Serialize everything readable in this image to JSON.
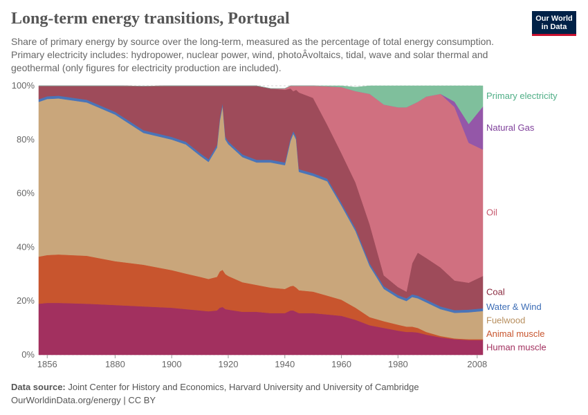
{
  "header": {
    "title": "Long-term energy transitions, Portugal",
    "subtitle": "Share of primary energy by source over the long-term, measured as the percentage of total energy consumption. Primary electricity includes: hydropower, nuclear power, wind, photoÂvoltaics, tidal, wave and solar thermal and geothermal (only figures for electricity production are included)."
  },
  "logo": {
    "line1": "Our World",
    "line2": "in Data",
    "bg_color": "#002147",
    "accent_color": "#c8102e"
  },
  "footer": {
    "source_label": "Data source:",
    "source_text": " Joint Center for History and Economics, Harvard University and University of Cambridge",
    "link_text": "OurWorldinData.org/energy | CC BY"
  },
  "chart_data": {
    "type": "area",
    "stacked": true,
    "xlim": [
      1853,
      2010
    ],
    "ylim": [
      0,
      100
    ],
    "y_ticks": [
      "0%",
      "20%",
      "40%",
      "60%",
      "80%",
      "100%"
    ],
    "x_ticks": [
      "1856",
      "1880",
      "1900",
      "1920",
      "1940",
      "1960",
      "1980",
      "2008"
    ],
    "grid": "horizontal dashed",
    "legend": "right, inline labels",
    "x": [
      1853,
      1856,
      1860,
      1870,
      1880,
      1890,
      1900,
      1905,
      1910,
      1913,
      1916,
      1917,
      1918,
      1919,
      1920,
      1925,
      1930,
      1935,
      1940,
      1942,
      1943,
      1944,
      1945,
      1950,
      1955,
      1960,
      1965,
      1970,
      1975,
      1980,
      1983,
      1985,
      1987,
      1990,
      1995,
      2000,
      2005,
      2010
    ],
    "series": [
      {
        "name": "Human muscle",
        "color": "#a2305f",
        "values": [
          19.0,
          19.3,
          19.3,
          19.0,
          18.5,
          18.0,
          17.5,
          17.0,
          16.5,
          16.2,
          16.5,
          17.5,
          17.8,
          17.0,
          16.8,
          16.0,
          16.0,
          15.5,
          15.5,
          16.5,
          16.5,
          16.0,
          15.5,
          15.5,
          15.0,
          14.5,
          13.0,
          11.0,
          10.0,
          9.0,
          8.5,
          8.5,
          8.3,
          7.5,
          6.5,
          5.8,
          5.5,
          5.5
        ]
      },
      {
        "name": "Animal muscle",
        "color": "#c8552e",
        "values": [
          17.5,
          17.8,
          18.0,
          17.8,
          16.3,
          15.5,
          14.0,
          13.2,
          12.5,
          12.0,
          12.5,
          13.5,
          13.8,
          13.0,
          12.5,
          11.0,
          10.0,
          9.5,
          9.0,
          9.0,
          9.2,
          9.0,
          8.5,
          8.0,
          7.0,
          6.0,
          4.5,
          3.0,
          2.5,
          2.2,
          2.0,
          2.0,
          1.7,
          1.0,
          0.5,
          0.3,
          0.3,
          0.3
        ]
      },
      {
        "name": "Fuelwood",
        "color": "#c9a67b",
        "values": [
          57.5,
          58.0,
          58.0,
          57.0,
          54.5,
          49.0,
          48.5,
          48.0,
          45.0,
          43.5,
          48.0,
          56.0,
          61.0,
          50.0,
          49.0,
          46.5,
          45.5,
          46.5,
          46.0,
          54.0,
          56.5,
          55.0,
          44.0,
          43.0,
          42.5,
          35.0,
          28.5,
          19.0,
          12.0,
          10.0,
          9.5,
          11.0,
          11.0,
          11.0,
          10.0,
          9.5,
          10.0,
          10.5
        ]
      },
      {
        "name": "Water & Wind",
        "color": "#4a74b8",
        "values": [
          1.0,
          1.0,
          1.0,
          1.0,
          1.0,
          1.0,
          1.0,
          1.0,
          1.0,
          1.0,
          1.0,
          1.0,
          1.0,
          1.0,
          1.0,
          1.0,
          1.0,
          1.0,
          1.0,
          1.0,
          1.0,
          1.0,
          1.0,
          1.0,
          1.0,
          1.0,
          1.0,
          1.0,
          1.0,
          1.0,
          1.0,
          1.0,
          1.0,
          1.0,
          1.0,
          1.0,
          1.0,
          1.0
        ]
      },
      {
        "name": "Coal",
        "color": "#9e4b5a",
        "values": [
          5.0,
          3.9,
          3.7,
          5.2,
          9.7,
          16.4,
          19.0,
          20.8,
          25.0,
          27.3,
          22.0,
          12.0,
          6.4,
          19.0,
          20.7,
          25.5,
          27.5,
          26.5,
          27.0,
          18.5,
          14.8,
          17.5,
          28.5,
          28.0,
          20.0,
          18.5,
          17.0,
          14.5,
          4.0,
          3.0,
          2.5,
          11.5,
          16.0,
          15.5,
          14.5,
          11.0,
          10.0,
          12.0
        ]
      },
      {
        "name": "Oil",
        "color": "#d07080",
        "values": [
          0,
          0,
          0,
          0,
          0,
          0,
          0,
          0,
          0,
          0,
          0,
          0,
          0,
          0,
          0,
          0,
          0,
          0,
          0.5,
          1.0,
          2.0,
          1.5,
          2.5,
          4.5,
          14.3,
          24.5,
          34.0,
          48.5,
          63.5,
          66.8,
          68.5,
          59.0,
          56.0,
          60.0,
          64.5,
          64.5,
          52.0,
          47.0
        ]
      },
      {
        "name": "Natural Gas",
        "color": "#9457a8",
        "values": [
          0,
          0,
          0,
          0,
          0,
          0,
          0,
          0,
          0,
          0,
          0,
          0,
          0,
          0,
          0,
          0,
          0,
          0,
          0,
          0,
          0,
          0,
          0,
          0,
          0,
          0,
          0,
          0,
          0,
          0,
          0,
          0,
          0,
          0,
          0,
          2.0,
          7.0,
          16.0
        ]
      },
      {
        "name": "Primary electricity",
        "color": "#7fbf9c",
        "values": [
          0,
          0,
          0,
          0,
          0,
          0,
          0,
          0,
          0,
          0,
          0,
          0,
          0,
          0,
          0,
          0,
          0,
          0,
          0,
          0,
          0,
          0,
          0,
          0,
          0.2,
          0.5,
          1.5,
          3.0,
          7.0,
          8.0,
          8.0,
          7.0,
          6.0,
          4.0,
          3.0,
          5.9,
          14.2,
          7.7
        ]
      }
    ],
    "label_colors": {
      "Human muscle": "#a2305f",
      "Animal muscle": "#c8552e",
      "Fuelwood": "#b89060",
      "Water & Wind": "#3b6cb5",
      "Coal": "#8a2a3f",
      "Oil": "#c75a6e",
      "Natural Gas": "#7e3f9a",
      "Primary electricity": "#4fae86"
    }
  }
}
